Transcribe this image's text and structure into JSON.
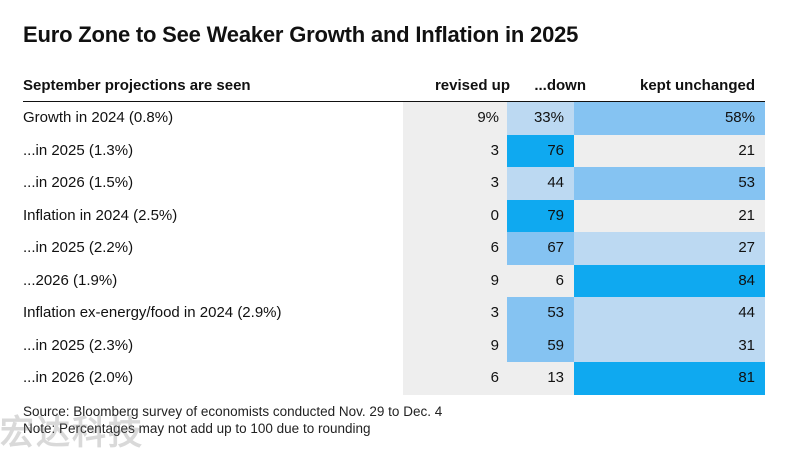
{
  "chart_data": {
    "type": "table",
    "title": "Euro Zone to See Weaker Growth and Inflation in 2025",
    "columns": [
      "September projections are seen",
      "revised up",
      "...down",
      "kept unchanged"
    ],
    "rows": [
      {
        "label": "Growth in 2024 (0.8%)",
        "up": "9%",
        "down": "33%",
        "kept": "58%"
      },
      {
        "label": "...in 2025 (1.3%)",
        "up": "3",
        "down": "76",
        "kept": "21"
      },
      {
        "label": "...in 2026 (1.5%)",
        "up": "3",
        "down": "44",
        "kept": "53"
      },
      {
        "label": "Inflation in 2024 (2.5%)",
        "up": "0",
        "down": "79",
        "kept": "21"
      },
      {
        "label": "...in 2025 (2.2%)",
        "up": "6",
        "down": "67",
        "kept": "27"
      },
      {
        "label": "...2026 (1.9%)",
        "up": "9",
        "down": "6",
        "kept": "84"
      },
      {
        "label": "Inflation ex-energy/food in 2024 (2.9%)",
        "up": "3",
        "down": "53",
        "kept": "44"
      },
      {
        "label": "...in 2025 (2.3%)",
        "up": "9",
        "down": "59",
        "kept": "31"
      },
      {
        "label": "...in 2026 (2.0%)",
        "up": "6",
        "down": "13",
        "kept": "81"
      }
    ],
    "source": "Source: Bloomberg survey of economists conducted Nov. 29 to Dec. 4",
    "note": "Note: Percentages may not add up to 100 due to rounding",
    "colors": {
      "low": "#eeeeee",
      "mid_low": "#bcd9f2",
      "mid_high": "#85c3f2",
      "high": "#0fa9f0"
    }
  },
  "watermark": "宏达科技"
}
